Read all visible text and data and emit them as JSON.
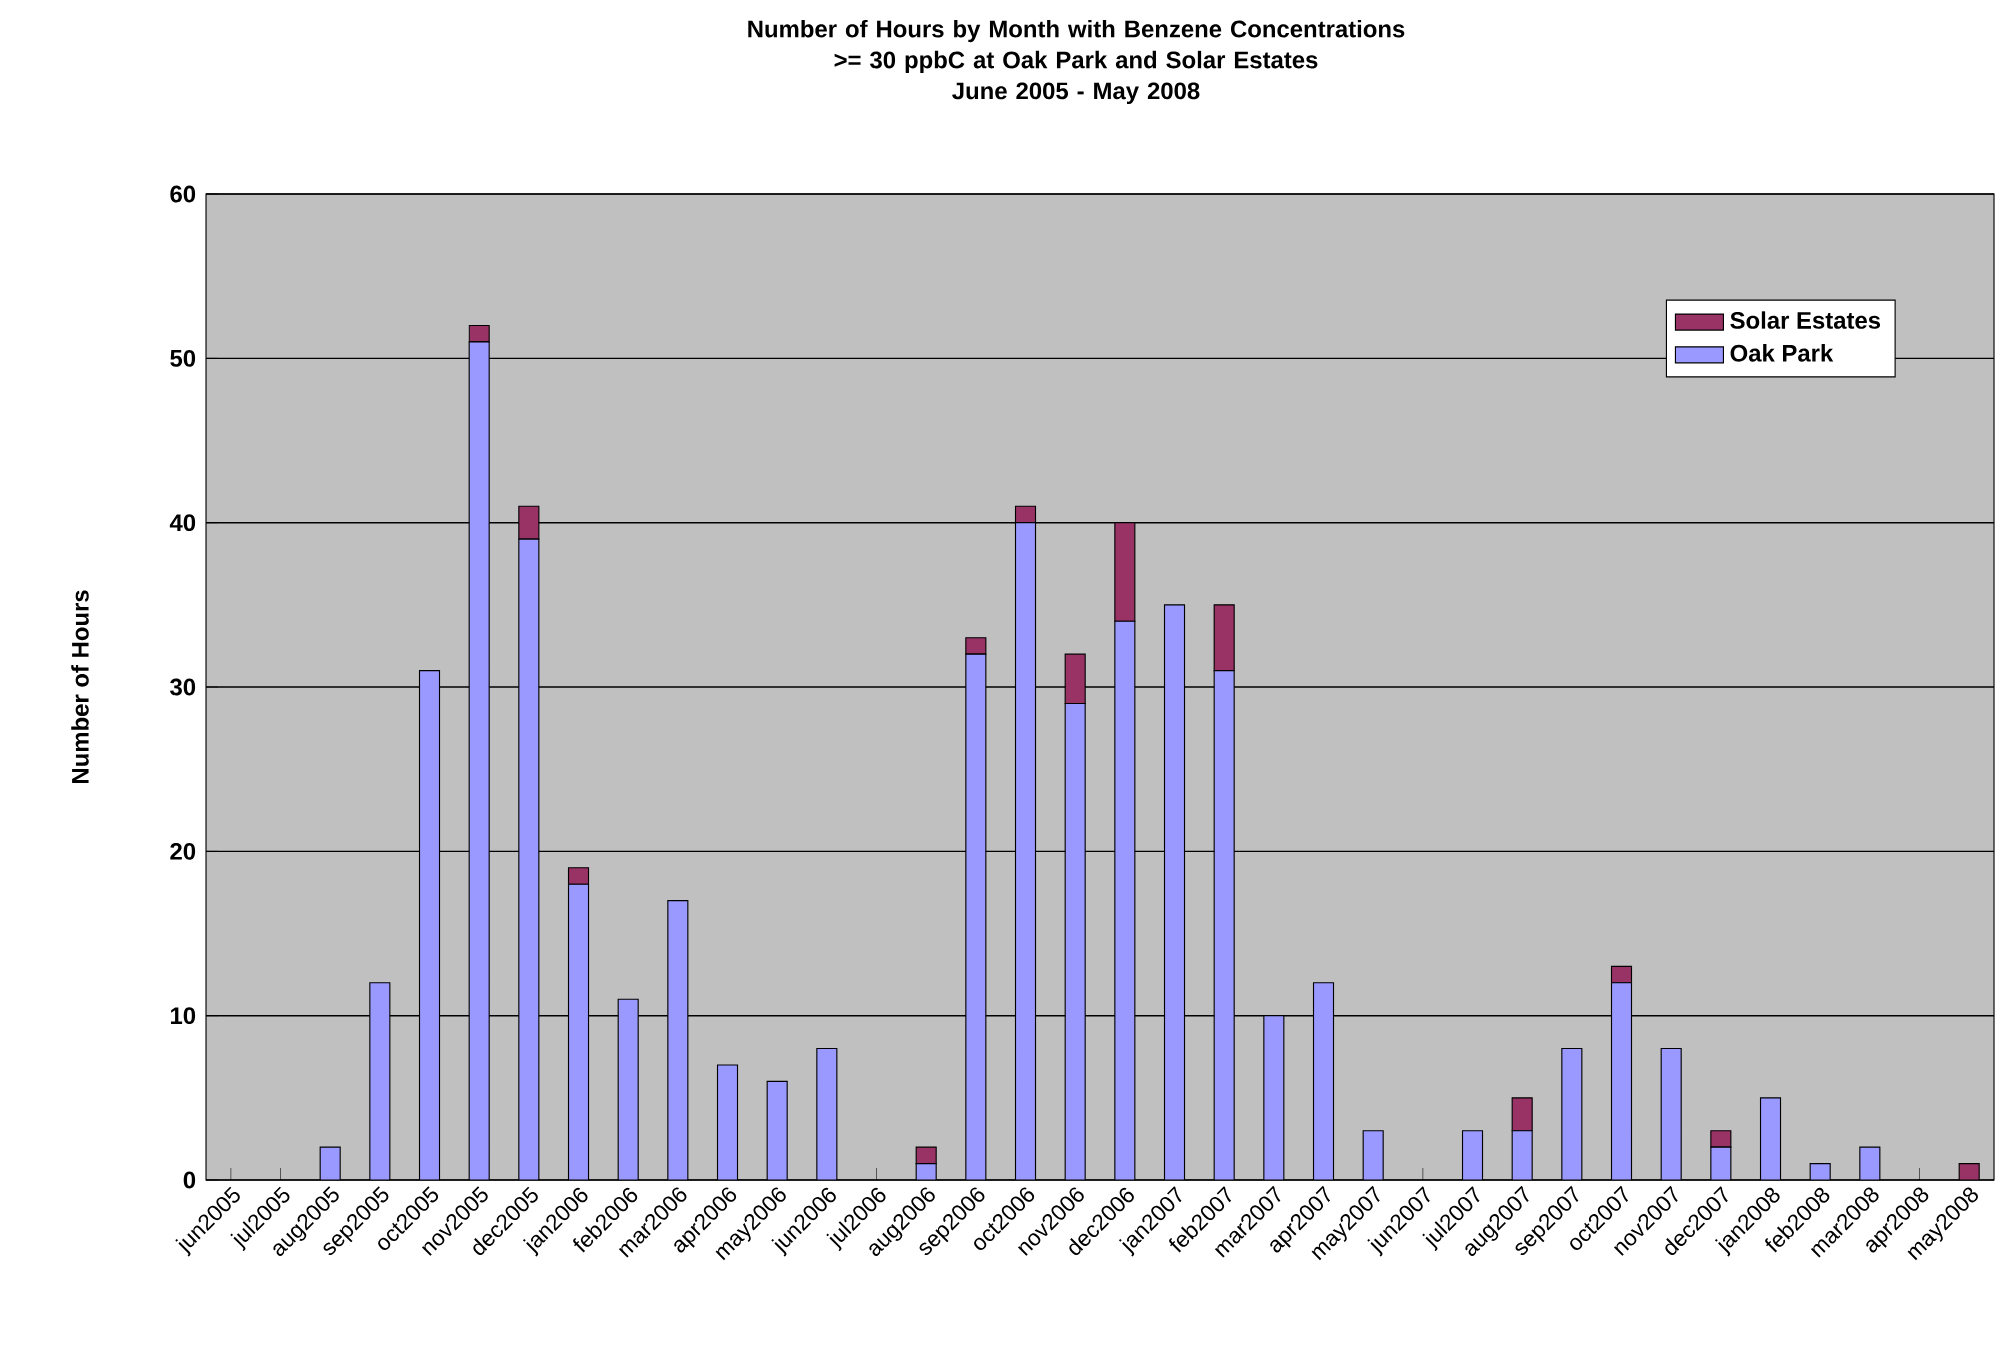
{
  "chart_data": {
    "type": "bar",
    "stacked": true,
    "title": "Number of Hours by Month with Benzene Concentrations >= 30 ppbC at Oak Park and Solar Estates",
    "subtitle": "June 2005 - May 2008",
    "ylabel": "Number of Hours",
    "categories": [
      "jun2005",
      "jul2005",
      "aug2005",
      "sep2005",
      "oct2005",
      "nov2005",
      "dec2005",
      "jan2006",
      "feb2006",
      "mar2006",
      "apr2006",
      "may2006",
      "jun2006",
      "jul2006",
      "aug2006",
      "sep2006",
      "oct2006",
      "nov2006",
      "dec2006",
      "jan2007",
      "feb2007",
      "mar2007",
      "apr2007",
      "may2007",
      "jun2007",
      "jul2007",
      "aug2007",
      "sep2007",
      "oct2007",
      "nov2007",
      "dec2007",
      "jan2008",
      "feb2008",
      "mar2008",
      "apr2008",
      "may2008"
    ],
    "series": [
      {
        "name": "Oak Park",
        "color": "#9999ff",
        "values": [
          0,
          0,
          2,
          12,
          31,
          51,
          39,
          18,
          11,
          17,
          7,
          6,
          8,
          0,
          1,
          32,
          40,
          29,
          34,
          35,
          31,
          10,
          12,
          3,
          0,
          3,
          3,
          8,
          12,
          8,
          2,
          5,
          1,
          2,
          0,
          0
        ]
      },
      {
        "name": "Solar Estates",
        "color": "#993366",
        "values": [
          0,
          0,
          0,
          0,
          0,
          1,
          2,
          1,
          0,
          0,
          0,
          0,
          0,
          0,
          1,
          1,
          1,
          3,
          6,
          0,
          4,
          0,
          0,
          0,
          0,
          0,
          2,
          0,
          1,
          0,
          1,
          0,
          0,
          0,
          0,
          1
        ]
      }
    ],
    "ylim": [
      0,
      60
    ],
    "yticks": [
      0,
      10,
      20,
      30,
      40,
      50,
      60
    ],
    "grid": "y",
    "legend": "top right"
  }
}
